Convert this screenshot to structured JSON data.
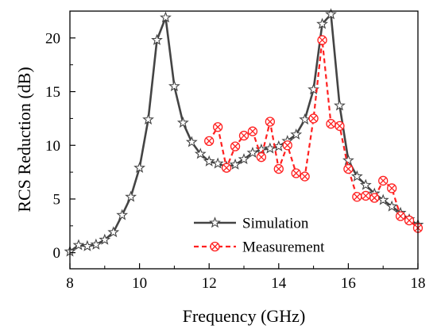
{
  "chart_data": {
    "type": "line",
    "xlabel": "Frequency (GHz)",
    "ylabel": "RCS Reduction (dB)",
    "xlim": [
      8,
      18
    ],
    "ylim": [
      -1.5,
      22.5
    ],
    "xticks": [
      "8",
      "10",
      "12",
      "14",
      "16",
      "18"
    ],
    "yticks": [
      "0",
      "5",
      "10",
      "15",
      "20"
    ],
    "grid": false,
    "legend_position": "bottom-center",
    "series": [
      {
        "name": "Simulation",
        "color": "#444444",
        "style": "solid",
        "marker": "star",
        "x": [
          8.0,
          8.25,
          8.5,
          8.75,
          9.0,
          9.25,
          9.5,
          9.75,
          10.0,
          10.25,
          10.5,
          10.75,
          11.0,
          11.25,
          11.5,
          11.75,
          12.0,
          12.25,
          12.5,
          12.75,
          13.0,
          13.25,
          13.5,
          13.75,
          14.0,
          14.25,
          14.5,
          14.75,
          15.0,
          15.25,
          15.5,
          15.75,
          16.0,
          16.25,
          16.5,
          16.75,
          17.0,
          17.25,
          17.5,
          17.75,
          18.0
        ],
        "y": [
          0.1,
          0.7,
          0.6,
          0.75,
          1.2,
          1.9,
          3.5,
          5.2,
          7.9,
          12.4,
          19.8,
          21.9,
          15.5,
          12.1,
          10.3,
          9.2,
          8.5,
          8.3,
          8.0,
          8.2,
          8.7,
          9.3,
          9.6,
          9.7,
          9.9,
          10.4,
          11.0,
          12.4,
          15.2,
          21.3,
          22.2,
          13.7,
          8.6,
          7.1,
          6.3,
          5.5,
          4.9,
          4.3,
          3.7,
          3.1,
          2.6
        ]
      },
      {
        "name": "Measurement",
        "color": "#ff2020",
        "style": "dashed",
        "marker": "crossed-circle",
        "x": [
          12.0,
          12.25,
          12.5,
          12.75,
          13.0,
          13.25,
          13.5,
          13.75,
          14.0,
          14.25,
          14.5,
          14.75,
          15.0,
          15.25,
          15.5,
          15.75,
          16.0,
          16.25,
          16.5,
          16.75,
          17.0,
          17.25,
          17.5,
          17.75,
          18.0
        ],
        "y": [
          10.4,
          11.7,
          7.9,
          9.9,
          10.9,
          11.3,
          8.9,
          12.2,
          7.8,
          10.0,
          7.4,
          7.1,
          12.5,
          19.8,
          12.0,
          11.8,
          7.8,
          5.2,
          5.3,
          5.1,
          6.7,
          6.0,
          3.4,
          3.0,
          2.3
        ]
      }
    ]
  }
}
